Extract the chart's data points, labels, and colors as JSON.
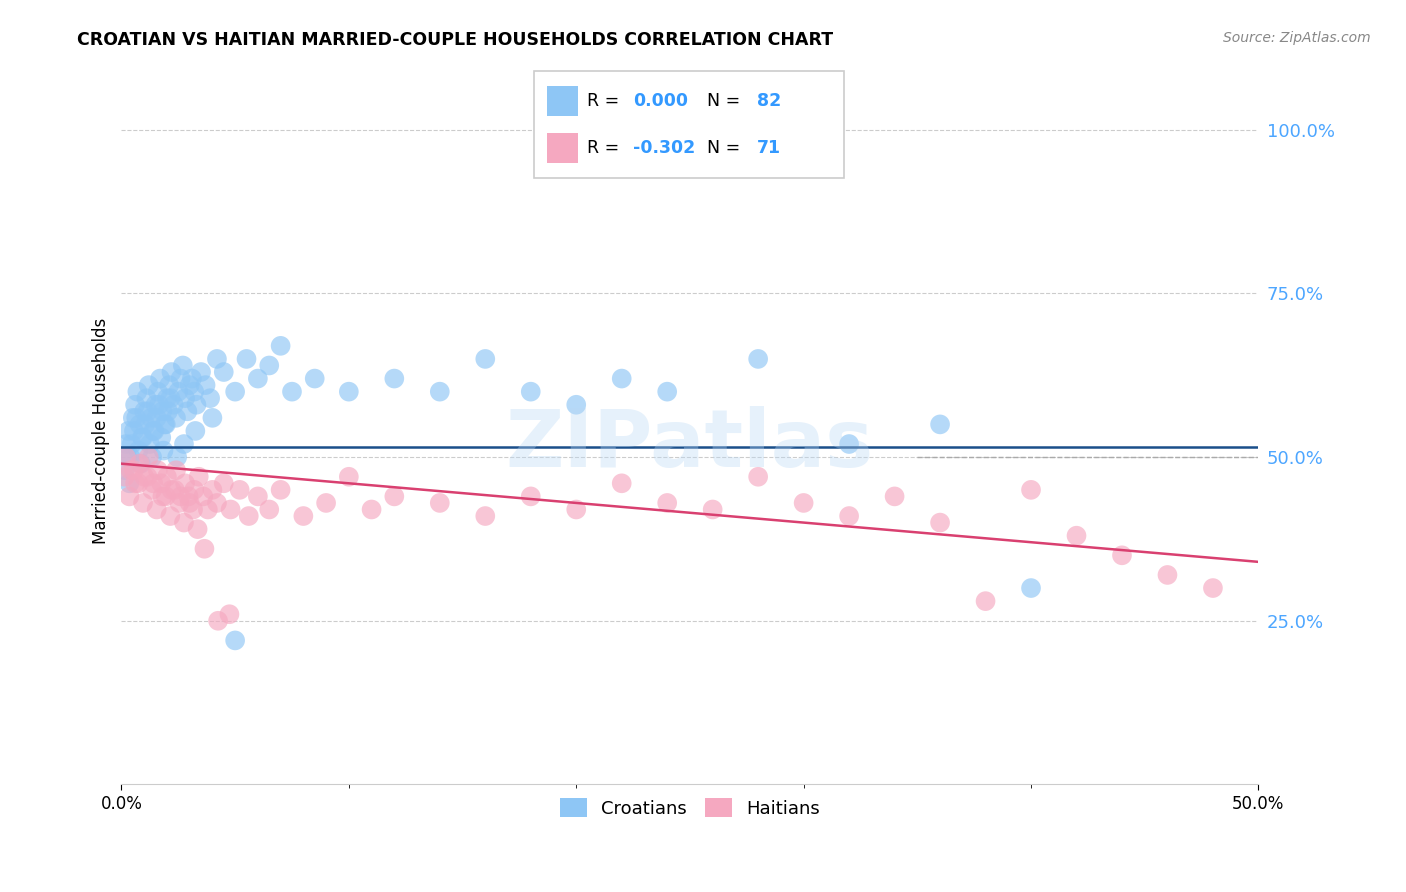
{
  "title": "CROATIAN VS HAITIAN MARRIED-COUPLE HOUSEHOLDS CORRELATION CHART",
  "source": "Source: ZipAtlas.com",
  "ylabel": "Married-couple Households",
  "r_croatian": "0.000",
  "n_croatian": 82,
  "r_haitian": "-0.302",
  "n_haitian": 71,
  "color_croatian": "#8ec6f5",
  "color_haitian": "#f5a8c0",
  "line_croatian_color": "#1a4f8a",
  "line_haitian_color": "#d94070",
  "legend_croatians": "Croatians",
  "legend_haitians": "Haitians",
  "xlim": [
    0,
    50
  ],
  "ylim": [
    0,
    108
  ],
  "yticks": [
    0,
    25,
    50,
    75,
    100
  ],
  "ytick_show": [
    25,
    50,
    75,
    100
  ],
  "xticks_show": [
    0,
    50
  ],
  "watermark_text": "ZIPatlas",
  "croatian_x": [
    0.2,
    0.3,
    0.4,
    0.5,
    0.6,
    0.7,
    0.8,
    0.9,
    1.0,
    1.1,
    1.2,
    1.3,
    1.4,
    1.5,
    1.6,
    1.7,
    1.8,
    1.9,
    2.0,
    2.1,
    2.2,
    2.3,
    2.4,
    2.5,
    2.6,
    2.7,
    2.8,
    2.9,
    3.0,
    3.1,
    3.2,
    3.3,
    3.5,
    3.7,
    3.9,
    4.2,
    4.5,
    5.0,
    5.5,
    6.0,
    6.5,
    7.0,
    7.5,
    8.5,
    10.0,
    12.0,
    14.0,
    16.0,
    18.0,
    20.0,
    22.0,
    24.0,
    28.0,
    32.0,
    36.0,
    40.0,
    0.15,
    0.25,
    0.35,
    0.45,
    0.55,
    0.65,
    0.75,
    0.85,
    0.95,
    1.05,
    1.15,
    1.25,
    1.35,
    1.45,
    1.55,
    1.65,
    1.75,
    1.85,
    1.95,
    2.05,
    2.15,
    2.45,
    2.75,
    3.25,
    4.0,
    5.0
  ],
  "croatian_y": [
    52,
    54,
    50,
    56,
    58,
    60,
    55,
    53,
    57,
    59,
    61,
    56,
    54,
    58,
    60,
    62,
    57,
    55,
    59,
    61,
    63,
    58,
    56,
    60,
    62,
    64,
    59,
    57,
    61,
    62,
    60,
    58,
    63,
    61,
    59,
    65,
    63,
    60,
    65,
    62,
    64,
    67,
    60,
    62,
    60,
    62,
    60,
    65,
    60,
    58,
    62,
    60,
    65,
    52,
    55,
    30,
    48,
    50,
    46,
    52,
    54,
    56,
    51,
    49,
    53,
    55,
    57,
    52,
    50,
    54,
    56,
    58,
    53,
    51,
    55,
    57,
    59,
    50,
    52,
    54,
    56,
    22
  ],
  "haitian_x": [
    0.2,
    0.4,
    0.6,
    0.8,
    1.0,
    1.2,
    1.4,
    1.6,
    1.8,
    2.0,
    2.2,
    2.4,
    2.6,
    2.8,
    3.0,
    3.2,
    3.4,
    3.6,
    3.8,
    4.0,
    4.2,
    4.5,
    4.8,
    5.2,
    5.6,
    6.0,
    6.5,
    7.0,
    8.0,
    9.0,
    10.0,
    11.0,
    12.0,
    14.0,
    16.0,
    18.0,
    20.0,
    22.0,
    24.0,
    26.0,
    28.0,
    30.0,
    32.0,
    34.0,
    36.0,
    38.0,
    40.0,
    42.0,
    44.0,
    46.0,
    48.0,
    0.15,
    0.35,
    0.55,
    0.75,
    0.95,
    1.15,
    1.35,
    1.55,
    1.75,
    1.95,
    2.15,
    2.35,
    2.55,
    2.75,
    2.95,
    3.15,
    3.35,
    3.65,
    4.25,
    4.75
  ],
  "haitian_y": [
    50,
    48,
    46,
    49,
    47,
    50,
    46,
    48,
    44,
    47,
    45,
    48,
    44,
    46,
    43,
    45,
    47,
    44,
    42,
    45,
    43,
    46,
    42,
    45,
    41,
    44,
    42,
    45,
    41,
    43,
    47,
    42,
    44,
    43,
    41,
    44,
    42,
    46,
    43,
    42,
    47,
    43,
    41,
    44,
    40,
    28,
    45,
    38,
    35,
    32,
    30,
    47,
    44,
    48,
    46,
    43,
    47,
    45,
    42,
    46,
    44,
    41,
    45,
    43,
    40,
    44,
    42,
    39,
    36,
    25,
    26
  ],
  "croatian_trend_x": [
    0,
    50
  ],
  "croatian_trend_y": [
    51.5,
    51.5
  ],
  "haitian_trend_x": [
    0,
    50
  ],
  "haitian_trend_y": [
    49,
    34
  ],
  "dashed_line_x": [
    35,
    50
  ],
  "dashed_line_y": [
    50,
    50
  ]
}
